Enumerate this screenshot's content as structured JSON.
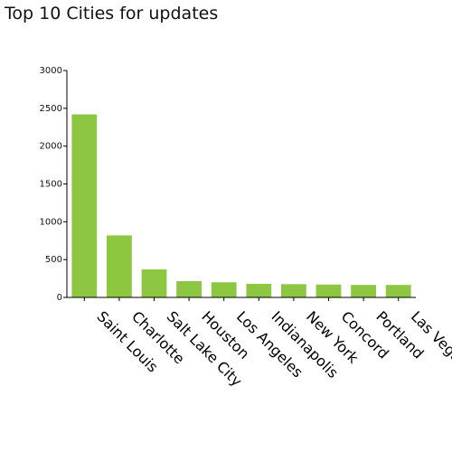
{
  "chart_data": {
    "type": "bar",
    "title": "Top 10 Cities for updates",
    "xlabel": "",
    "ylabel": "",
    "categories": [
      "Saint Louis",
      "Charlotte",
      "Salt Lake City",
      "Houston",
      "Los Angeles",
      "Indianapolis",
      "New York",
      "Concord",
      "Portland",
      "Las Vegas"
    ],
    "values": [
      2420,
      820,
      370,
      215,
      200,
      180,
      175,
      170,
      165,
      165
    ],
    "ylim": [
      0,
      3000
    ],
    "yticks": [
      0,
      500,
      1000,
      1500,
      2000,
      2500,
      3000
    ],
    "grid": false,
    "legend": "none",
    "bar_color": "#8dc641"
  }
}
